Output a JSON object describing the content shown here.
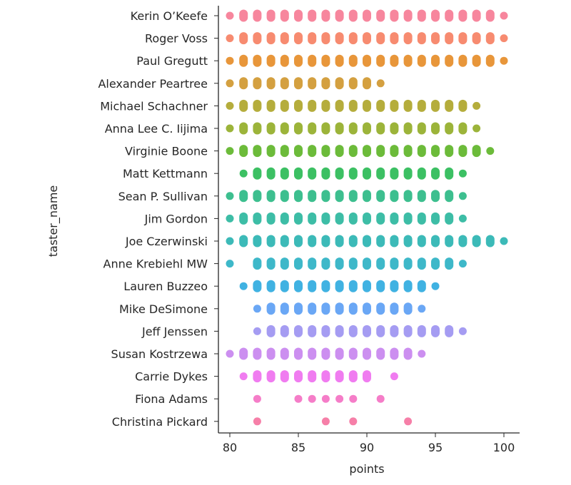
{
  "chart_data": {
    "type": "scatter",
    "subtype": "strip",
    "xlabel": "points",
    "ylabel": "taster_name",
    "xlim": [
      79.2,
      101.2
    ],
    "xticks": [
      80,
      85,
      90,
      95,
      100
    ],
    "grid": false,
    "legend": "none",
    "categories": [
      {
        "name": "Kerin O’Keefe",
        "color": "#f7869d",
        "values": [
          80,
          81,
          82,
          83,
          84,
          85,
          86,
          87,
          88,
          89,
          90,
          91,
          92,
          93,
          94,
          95,
          96,
          97,
          98,
          99,
          100
        ]
      },
      {
        "name": "Roger Voss",
        "color": "#f78b70",
        "values": [
          80,
          81,
          82,
          83,
          84,
          85,
          86,
          87,
          88,
          89,
          90,
          91,
          92,
          93,
          94,
          95,
          96,
          97,
          98,
          99,
          100
        ]
      },
      {
        "name": "Paul Gregutt",
        "color": "#e8963a",
        "values": [
          80,
          81,
          82,
          83,
          84,
          85,
          86,
          87,
          88,
          89,
          90,
          91,
          92,
          93,
          94,
          95,
          96,
          97,
          98,
          99,
          100
        ]
      },
      {
        "name": "Alexander Peartree",
        "color": "#d4a040",
        "values": [
          80,
          81,
          82,
          83,
          84,
          85,
          86,
          87,
          88,
          89,
          90,
          91
        ]
      },
      {
        "name": "Michael Schachner",
        "color": "#b5ad3c",
        "values": [
          80,
          81,
          82,
          83,
          84,
          85,
          86,
          87,
          88,
          89,
          90,
          91,
          92,
          93,
          94,
          95,
          96,
          97,
          98
        ]
      },
      {
        "name": "Anna Lee C. Iijima",
        "color": "#9cb43a",
        "values": [
          80,
          81,
          82,
          83,
          84,
          85,
          86,
          87,
          88,
          89,
          90,
          91,
          92,
          93,
          94,
          95,
          96,
          97,
          98
        ]
      },
      {
        "name": "Virginie Boone",
        "color": "#6cbb3a",
        "values": [
          80,
          81,
          82,
          83,
          84,
          85,
          86,
          87,
          88,
          89,
          90,
          91,
          92,
          93,
          94,
          95,
          96,
          97,
          98,
          99
        ]
      },
      {
        "name": "Matt Kettmann",
        "color": "#3cc063",
        "values": [
          81,
          82,
          83,
          84,
          85,
          86,
          87,
          88,
          89,
          90,
          91,
          92,
          93,
          94,
          95,
          96,
          97
        ]
      },
      {
        "name": "Sean P. Sullivan",
        "color": "#3dbf8f",
        "values": [
          80,
          81,
          82,
          83,
          84,
          85,
          86,
          87,
          88,
          89,
          90,
          91,
          92,
          93,
          94,
          95,
          96,
          97
        ]
      },
      {
        "name": "Jim Gordon",
        "color": "#3dbda6",
        "values": [
          80,
          81,
          82,
          83,
          84,
          85,
          86,
          87,
          88,
          89,
          90,
          91,
          92,
          93,
          94,
          95,
          96,
          97
        ]
      },
      {
        "name": "Joe Czerwinski",
        "color": "#3cbab8",
        "values": [
          80,
          81,
          82,
          83,
          84,
          85,
          86,
          87,
          88,
          89,
          90,
          91,
          92,
          93,
          94,
          95,
          96,
          97,
          98,
          99,
          100
        ]
      },
      {
        "name": "Anne Krebiehl MW",
        "color": "#3eb8c9",
        "values": [
          80,
          82,
          83,
          84,
          85,
          86,
          87,
          88,
          89,
          90,
          91,
          92,
          93,
          94,
          95,
          96,
          97
        ]
      },
      {
        "name": "Lauren Buzzeo",
        "color": "#40b2e2",
        "values": [
          81,
          82,
          83,
          84,
          85,
          86,
          87,
          88,
          89,
          90,
          91,
          92,
          93,
          94,
          95
        ]
      },
      {
        "name": "Mike DeSimone",
        "color": "#6aa7f5",
        "values": [
          82,
          83,
          84,
          85,
          86,
          87,
          88,
          89,
          90,
          91,
          92,
          93,
          94
        ]
      },
      {
        "name": "Jeff Jenssen",
        "color": "#a59cf2",
        "values": [
          82,
          83,
          84,
          85,
          86,
          87,
          88,
          89,
          90,
          91,
          92,
          93,
          94,
          95,
          96,
          97
        ]
      },
      {
        "name": "Susan Kostrzewa",
        "color": "#cc8ff0",
        "values": [
          80,
          81,
          82,
          83,
          84,
          85,
          86,
          87,
          88,
          89,
          90,
          91,
          92,
          93,
          94
        ]
      },
      {
        "name": "Carrie Dykes",
        "color": "#f07cf0",
        "values": [
          81,
          82,
          83,
          84,
          85,
          86,
          87,
          88,
          89,
          90,
          92
        ]
      },
      {
        "name": "Fiona Adams",
        "color": "#f57dc8",
        "values": [
          82,
          85,
          86,
          87,
          88,
          89,
          91
        ]
      },
      {
        "name": "Christina Pickard",
        "color": "#f67fa8",
        "values": [
          82,
          87,
          89,
          93
        ]
      }
    ]
  }
}
